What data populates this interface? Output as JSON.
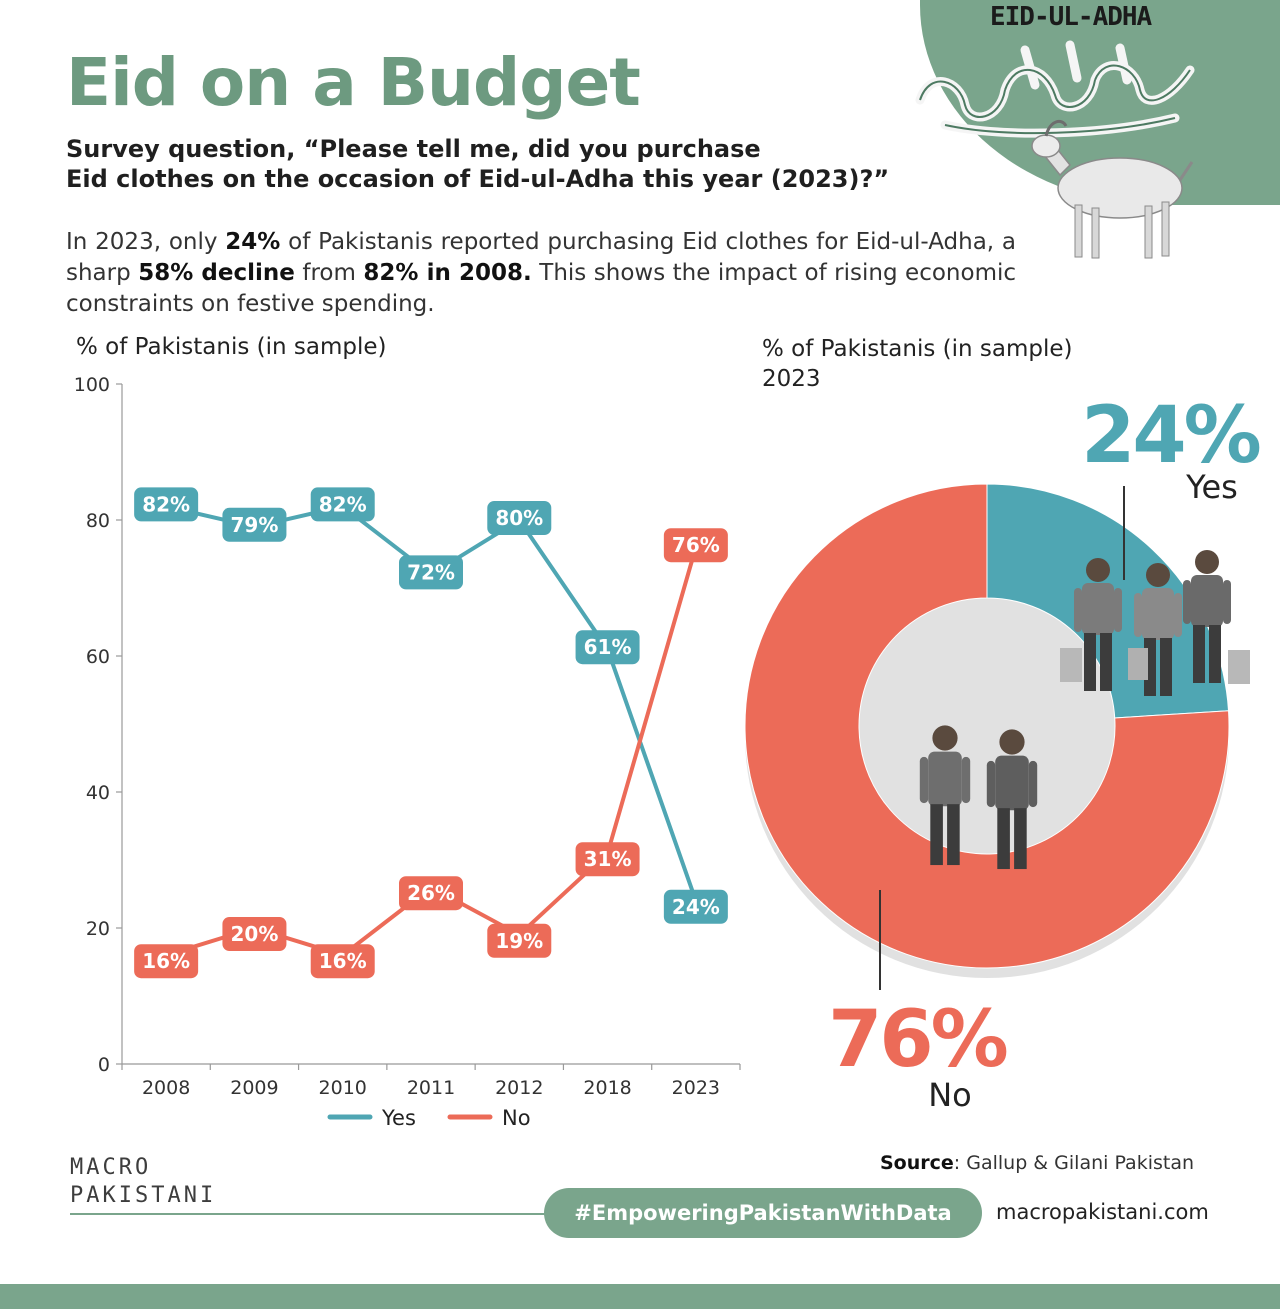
{
  "header": {
    "eid_tag": "EID-UL-ADHA",
    "title": "Eid on a Budget",
    "question_line1": "Survey question, “Please tell me, did you purchase",
    "question_line2": "Eid clothes on the occasion of Eid-ul-Adha this year (2023)?”"
  },
  "summary": {
    "p1": "In 2023, only ",
    "b1": "24%",
    "p2": " of Pakistanis reported purchasing Eid clothes for Eid-ul-Adha, a sharp ",
    "b2": "58% decline",
    "p3": " from ",
    "b3": "82% in 2008.",
    "p4": " This shows the impact of rising economic constraints on festive spending."
  },
  "colors": {
    "yes": "#4fa6b3",
    "no": "#ec6b58",
    "brand": "#7aa58c",
    "title": "#6d9a80"
  },
  "chart_data": [
    {
      "type": "line",
      "ylabel": "% of Pakistanis (in sample)",
      "categories": [
        "2008",
        "2009",
        "2010",
        "2011",
        "2012",
        "2018",
        "2023"
      ],
      "ylim": [
        0,
        100
      ],
      "yticks": [
        0,
        20,
        40,
        60,
        80,
        100
      ],
      "grid": false,
      "legend": "bottom",
      "series": [
        {
          "name": "Yes",
          "values": [
            82,
            79,
            82,
            72,
            80,
            61,
            24
          ],
          "labels": [
            "82%",
            "79%",
            "82%",
            "72%",
            "80%",
            "61%",
            "24%"
          ]
        },
        {
          "name": "No",
          "values": [
            16,
            20,
            16,
            26,
            19,
            31,
            76
          ],
          "labels": [
            "16%",
            "20%",
            "16%",
            "26%",
            "19%",
            "31%",
            "76%"
          ]
        }
      ]
    },
    {
      "type": "pie",
      "title": "% of Pakistanis (in sample)",
      "subtitle": "2023",
      "slices": [
        {
          "name": "Yes",
          "value": 24,
          "label": "24%"
        },
        {
          "name": "No",
          "value": 76,
          "label": "76%"
        }
      ]
    }
  ],
  "footer": {
    "brand_line1": "MACRO",
    "brand_line2": "PAKISTANI",
    "source_label": "Source",
    "source_text": ": Gallup & Gilani Pakistan",
    "hashtag": "#EmpoweringPakistanWithData",
    "website": "macropakistani.com"
  }
}
